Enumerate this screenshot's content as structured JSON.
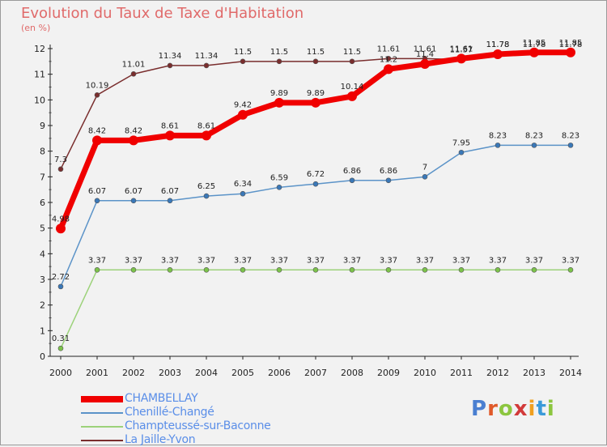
{
  "title": "Evolution du Taux de Taxe d'Habitation",
  "unit": "(en %)",
  "logo": {
    "letters": [
      "P",
      "r",
      "o",
      "x",
      "i",
      "t",
      "i"
    ],
    "colors": [
      "#4a7fd1",
      "#e05a2a",
      "#8cc63f",
      "#d23a3a",
      "#f0a020",
      "#3a9ad9",
      "#8cc63f"
    ]
  },
  "chart_data": {
    "type": "line",
    "x": [
      2000,
      2001,
      2002,
      2003,
      2004,
      2005,
      2006,
      2007,
      2008,
      2009,
      2010,
      2011,
      2012,
      2013,
      2014
    ],
    "ylim": [
      0,
      12
    ],
    "yticks": [
      0,
      1,
      2,
      3,
      4,
      5,
      6,
      7,
      8,
      9,
      10,
      11,
      12
    ],
    "grid": false,
    "legend_position": "bottom-left",
    "series": [
      {
        "name": "La Jaille-Yvon",
        "color": "#7a2e2e",
        "width": 1.5,
        "marker": "#7a2e2e",
        "values": [
          7.3,
          10.19,
          11.01,
          11.34,
          11.34,
          11.5,
          11.5,
          11.5,
          11.5,
          11.61,
          11.61,
          11.57,
          11.78,
          11.78,
          11.78
        ],
        "labels": [
          "7.3",
          "10.19",
          "11.01",
          "11.34",
          "11.34",
          "11.5",
          "11.5",
          "11.5",
          "11.5",
          "11.61",
          "11.61",
          "11.57",
          "11.78",
          "11.78",
          "11.78"
        ]
      },
      {
        "name": "Chenillé-Changé",
        "color": "#5b93c8",
        "width": 1.5,
        "marker": "#3a78b8",
        "values": [
          2.72,
          6.07,
          6.07,
          6.07,
          6.25,
          6.34,
          6.59,
          6.72,
          6.86,
          6.86,
          7,
          7.95,
          8.23,
          8.23,
          8.23
        ],
        "labels": [
          "2.72",
          "6.07",
          "6.07",
          "6.07",
          "6.25",
          "6.34",
          "6.59",
          "6.72",
          "6.86",
          "6.86",
          "7",
          "7.95",
          "8.23",
          "8.23",
          "8.23"
        ]
      },
      {
        "name": "Champteussé-sur-Baconne",
        "color": "#9cd27a",
        "width": 1.5,
        "marker": "#7cc34a",
        "values": [
          0.31,
          3.37,
          3.37,
          3.37,
          3.37,
          3.37,
          3.37,
          3.37,
          3.37,
          3.37,
          3.37,
          3.37,
          3.37,
          3.37,
          3.37
        ],
        "labels": [
          "0.31",
          "3.37",
          "3.37",
          "3.37",
          "3.37",
          "3.37",
          "3.37",
          "3.37",
          "3.37",
          "3.37",
          "3.37",
          "3.37",
          "3.37",
          "3.37",
          "3.37"
        ]
      },
      {
        "name": "CHAMBELLAY",
        "color": "#f00000",
        "width": 7,
        "marker": "#f00000",
        "values": [
          4.98,
          8.42,
          8.42,
          8.61,
          8.61,
          9.42,
          9.89,
          9.89,
          10.14,
          11.2,
          11.4,
          11.61,
          11.78,
          11.85,
          11.85
        ],
        "labels": [
          "4.98",
          "8.42",
          "8.42",
          "8.61",
          "8.61",
          "9.42",
          "9.89",
          "9.89",
          "10.14",
          "11.2",
          "11.4",
          "11.61",
          "11.78",
          "11.85",
          "11.85"
        ]
      }
    ],
    "legend_order": [
      "CHAMBELLAY",
      "Chenillé-Changé",
      "Champteussé-sur-Baconne",
      "La Jaille-Yvon"
    ]
  }
}
